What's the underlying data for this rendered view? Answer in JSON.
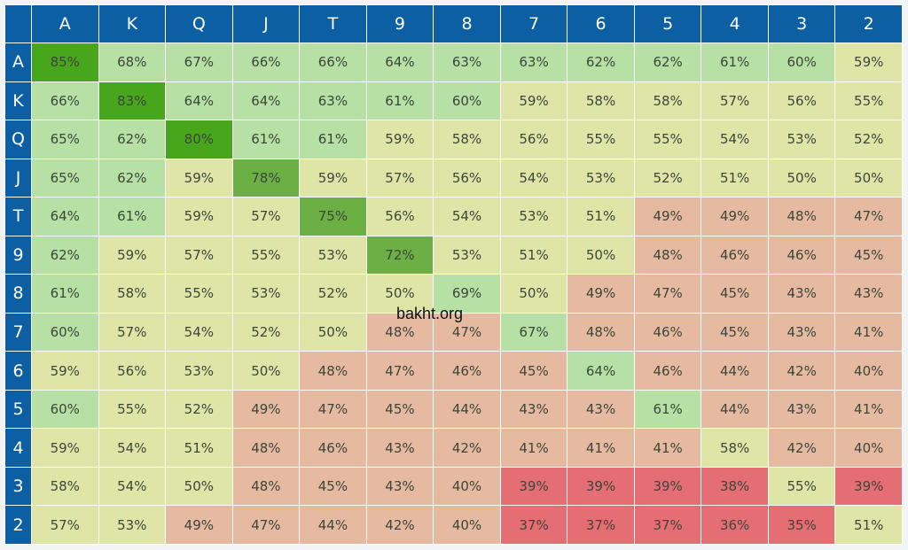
{
  "chart_data": {
    "type": "heatmap",
    "title": "",
    "col_labels": [
      "A",
      "K",
      "Q",
      "J",
      "T",
      "9",
      "8",
      "7",
      "6",
      "5",
      "4",
      "3",
      "2"
    ],
    "row_labels": [
      "A",
      "K",
      "Q",
      "J",
      "T",
      "9",
      "8",
      "7",
      "6",
      "5",
      "4",
      "3",
      "2"
    ],
    "unit": "%",
    "values": [
      [
        85,
        68,
        67,
        66,
        66,
        64,
        63,
        63,
        62,
        62,
        61,
        60,
        59
      ],
      [
        66,
        83,
        64,
        64,
        63,
        61,
        60,
        59,
        58,
        58,
        57,
        56,
        55
      ],
      [
        65,
        62,
        80,
        61,
        61,
        59,
        58,
        56,
        55,
        55,
        54,
        53,
        52
      ],
      [
        65,
        62,
        59,
        78,
        59,
        57,
        56,
        54,
        53,
        52,
        51,
        50,
        50
      ],
      [
        64,
        61,
        59,
        57,
        75,
        56,
        54,
        53,
        51,
        49,
        49,
        48,
        47
      ],
      [
        62,
        59,
        57,
        55,
        53,
        72,
        53,
        51,
        50,
        48,
        46,
        46,
        45
      ],
      [
        61,
        58,
        55,
        53,
        52,
        50,
        69,
        50,
        49,
        47,
        45,
        43,
        43
      ],
      [
        60,
        57,
        54,
        52,
        50,
        48,
        47,
        67,
        48,
        46,
        45,
        43,
        41
      ],
      [
        59,
        56,
        53,
        50,
        48,
        47,
        46,
        45,
        64,
        46,
        44,
        42,
        40
      ],
      [
        60,
        55,
        52,
        49,
        47,
        45,
        44,
        43,
        43,
        61,
        44,
        43,
        41
      ],
      [
        59,
        54,
        51,
        48,
        46,
        43,
        42,
        41,
        41,
        41,
        58,
        42,
        40
      ],
      [
        58,
        54,
        50,
        48,
        45,
        43,
        40,
        39,
        39,
        39,
        38,
        55,
        39
      ],
      [
        57,
        53,
        49,
        47,
        44,
        42,
        40,
        37,
        37,
        37,
        36,
        35,
        51
      ]
    ],
    "colors": {
      "header": "#0d5fa3",
      "very_high": "#48a61c",
      "high": "#6caf44",
      "green": "#b6e0a4",
      "yellow": "#dfe5a7",
      "salmon": "#e6b9a1",
      "red": "#e56d74"
    }
  },
  "watermark": "bakht.org"
}
